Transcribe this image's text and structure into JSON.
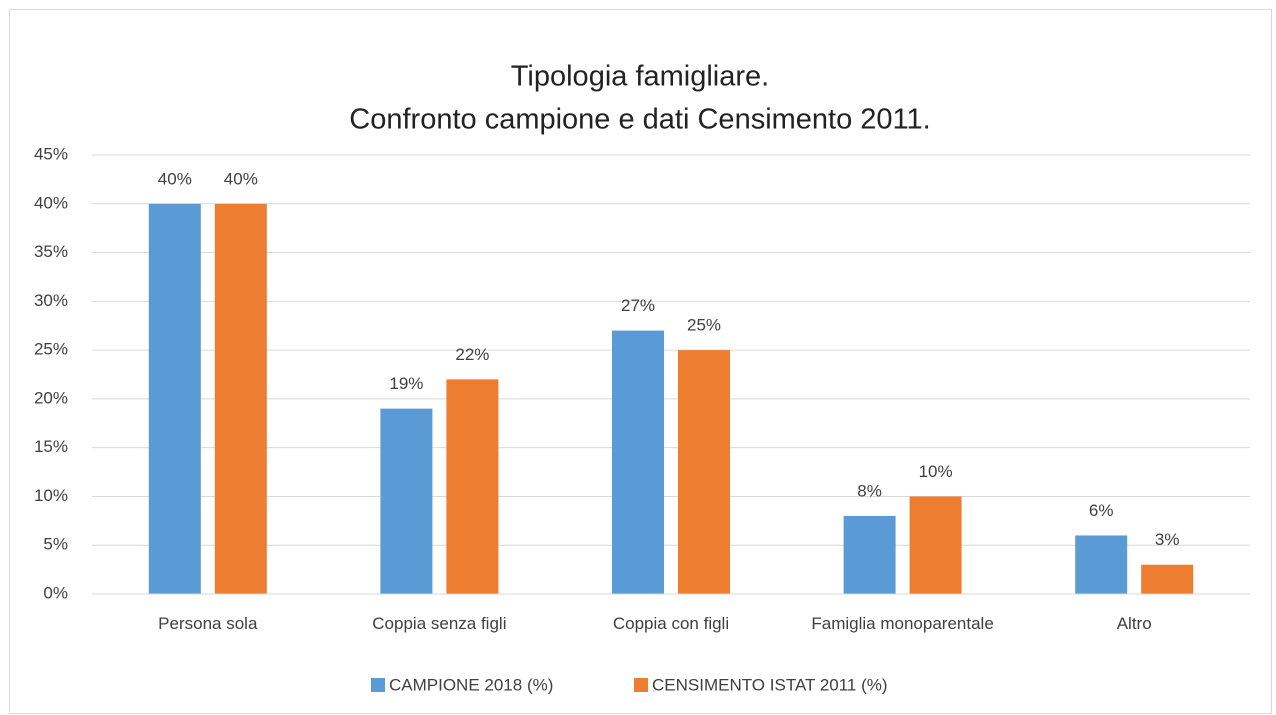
{
  "chart_data": {
    "type": "bar",
    "title": "Tipologia famigliare.",
    "subtitle": "Confronto campione e dati Censimento 2011.",
    "categories": [
      "Persona sola",
      "Coppia senza figli",
      "Coppia con figli",
      "Famiglia monoparentale",
      "Altro"
    ],
    "series": [
      {
        "name": "CAMPIONE 2018 (%)",
        "color": "#5b9bd5",
        "values": [
          40,
          19,
          27,
          8,
          6
        ],
        "value_labels": [
          "40%",
          "19%",
          "27%",
          "8%",
          "6%"
        ]
      },
      {
        "name": "CENSIMENTO ISTAT 2011 (%)",
        "color": "#ed7d31",
        "values": [
          40,
          22,
          25,
          10,
          3
        ],
        "value_labels": [
          "40%",
          "22%",
          "25%",
          "10%",
          "3%"
        ]
      }
    ],
    "ylim": [
      0,
      45
    ],
    "yticks": [
      {
        "value": 0,
        "label": "0%"
      },
      {
        "value": 5,
        "label": "5%"
      },
      {
        "value": 10,
        "label": "10%"
      },
      {
        "value": 15,
        "label": "15%"
      },
      {
        "value": 20,
        "label": "20%"
      },
      {
        "value": 25,
        "label": "25%"
      },
      {
        "value": 30,
        "label": "30%"
      },
      {
        "value": 35,
        "label": "35%"
      },
      {
        "value": 40,
        "label": "40%"
      },
      {
        "value": 45,
        "label": "45%"
      }
    ],
    "grid": true,
    "legend": "bottom"
  }
}
